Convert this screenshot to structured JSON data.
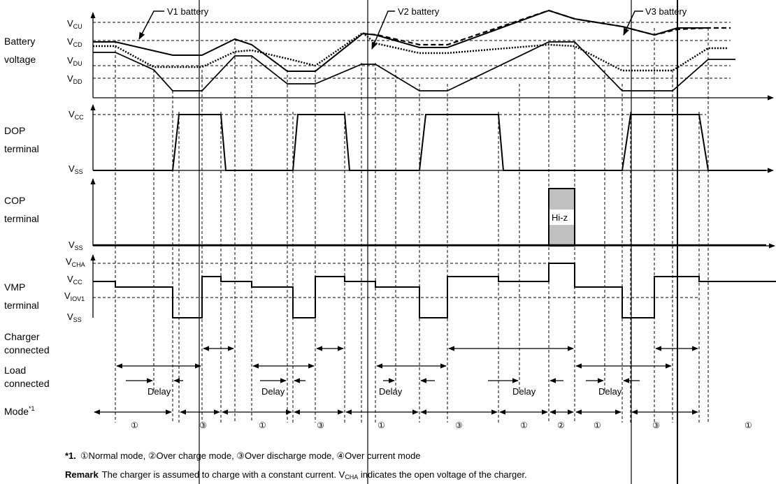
{
  "rows": {
    "battery_voltage": [
      "Battery",
      "voltage"
    ],
    "dop_terminal": [
      "DOP",
      "terminal"
    ],
    "cop_terminal": [
      "COP",
      "terminal"
    ],
    "vmp_terminal": [
      "VMP",
      "terminal"
    ],
    "charger_connected": [
      "Charger",
      "connected"
    ],
    "load_connected": [
      "Load",
      "connected"
    ],
    "mode": "Mode",
    "mode_footnote_mark": "*1"
  },
  "levels": {
    "vcu": {
      "main": "V",
      "sub": "CU"
    },
    "vcd": {
      "main": "V",
      "sub": "CD"
    },
    "vdu": {
      "main": "V",
      "sub": "DU"
    },
    "vdd": {
      "main": "V",
      "sub": "DD"
    },
    "dop_vcc": {
      "main": "V",
      "sub": "CC"
    },
    "dop_vss": {
      "main": "V",
      "sub": "SS"
    },
    "cop_vss": {
      "main": "V",
      "sub": "SS"
    },
    "vmp_vcha": {
      "main": "V",
      "sub": "CHA"
    },
    "vmp_vcc": {
      "main": "V",
      "sub": "CC"
    },
    "vmp_viov1": {
      "main": "V",
      "sub": "IOV1"
    },
    "vmp_vss": {
      "main": "V",
      "sub": "SS"
    }
  },
  "callouts": {
    "v1": "V1 battery",
    "v2": "V2 battery",
    "v3": "V3 battery",
    "hiz": "Hi-z"
  },
  "delay_label": "Delay",
  "modes": [
    "①",
    "③",
    "①",
    "③",
    "①",
    "③",
    "①",
    "②",
    "①",
    "③",
    "①"
  ],
  "footnote": {
    "mark": "*1.",
    "text": "①Normal mode, ②Over charge mode, ③Over discharge mode, ④Over current mode"
  },
  "remark": {
    "label": "Remark",
    "text_a": "The charger is assumed to charge with a constant current.  V",
    "sub": "CHA",
    "text_b": " indicates the open voltage of the charger."
  },
  "colors": {
    "ink": "#000000",
    "hiz_fill": "#c0c0c0"
  }
}
